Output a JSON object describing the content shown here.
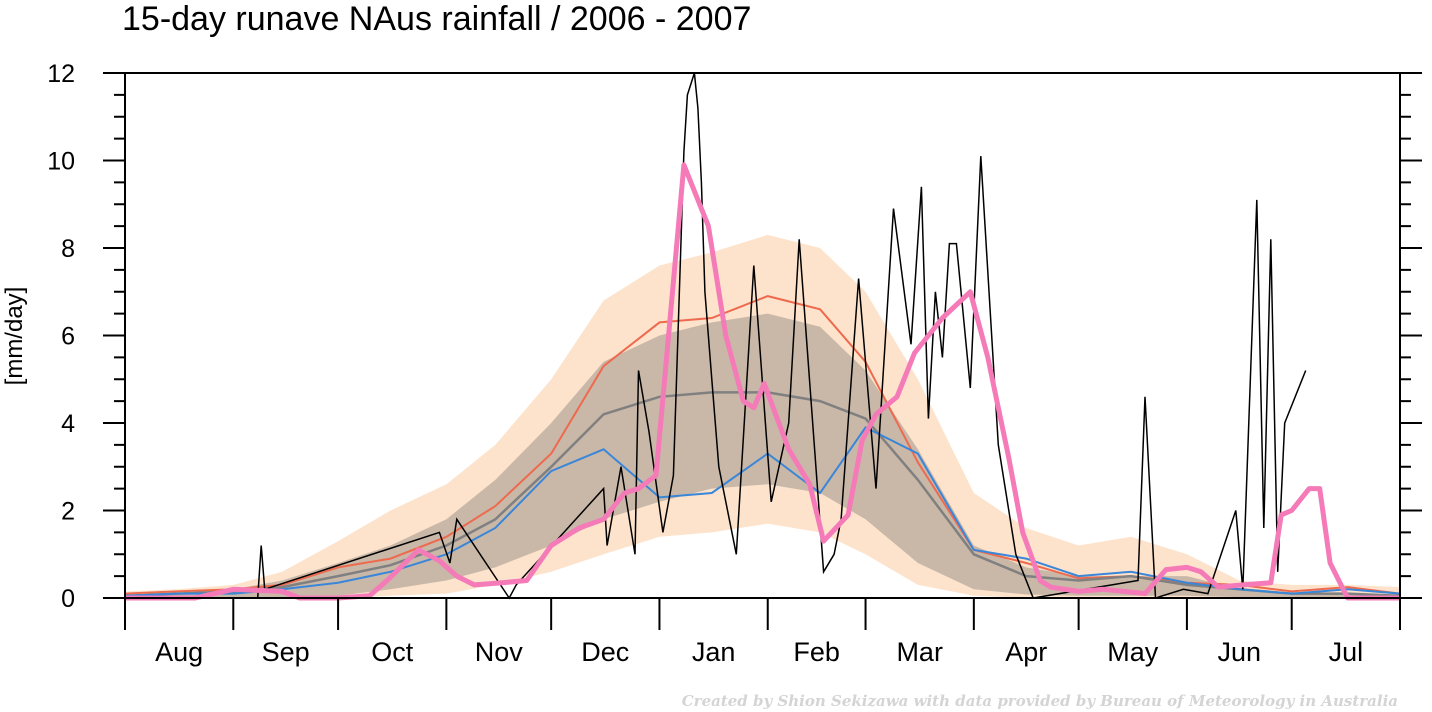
{
  "title": "15-day runave NAus rainfall  /  2006 - 2007",
  "credit": "Created by Shion Sekizawa with data provided by Bureau of Meteorology in Australia",
  "colors": {
    "outer_band": "#fde3cc",
    "inner_band": "#c9b8a8",
    "mean": "#ee6a4e",
    "median": "#808080",
    "blue": "#3a86d8",
    "daily": "#000000",
    "runave": "#f57ab8"
  },
  "chart_data": {
    "type": "line",
    "ylabel": "[mm/day]",
    "xlabel": "",
    "ylim": [
      0,
      12
    ],
    "yticks": [
      0,
      2,
      4,
      6,
      8,
      10,
      12
    ],
    "xlim": [
      0,
      365
    ],
    "grid": false,
    "legend": "none",
    "months": [
      "Aug",
      "Sep",
      "Oct",
      "Nov",
      "Dec",
      "Jan",
      "Feb",
      "Mar",
      "Apr",
      "May",
      "Jun",
      "Jul"
    ],
    "month_lengths": [
      31,
      30,
      31,
      30,
      31,
      31,
      28,
      31,
      30,
      31,
      30,
      31
    ],
    "climatology": {
      "x": [
        0,
        15,
        31,
        45,
        61,
        76,
        92,
        106,
        122,
        137,
        153,
        168,
        184,
        199,
        212,
        227,
        243,
        258,
        273,
        288,
        304,
        319,
        334,
        350,
        365
      ],
      "outer_hi": [
        0.15,
        0.2,
        0.3,
        0.6,
        1.3,
        2.0,
        2.6,
        3.5,
        5.0,
        6.8,
        7.6,
        7.9,
        8.3,
        8.0,
        7.0,
        5.0,
        2.4,
        1.6,
        1.2,
        1.4,
        1.0,
        0.4,
        0.3,
        0.3,
        0.25
      ],
      "inner_hi": [
        0.05,
        0.1,
        0.2,
        0.4,
        0.8,
        1.2,
        1.8,
        2.7,
        4.0,
        5.4,
        6.0,
        6.3,
        6.5,
        6.2,
        5.2,
        3.4,
        1.2,
        0.7,
        0.5,
        0.5,
        0.5,
        0.2,
        0.12,
        0.1,
        0.08
      ],
      "inner_lo": [
        0.0,
        0.0,
        0.0,
        0.02,
        0.05,
        0.2,
        0.4,
        0.7,
        1.2,
        1.8,
        2.2,
        2.5,
        2.6,
        2.4,
        1.8,
        0.8,
        0.2,
        0.08,
        0.05,
        0.05,
        0.05,
        0.02,
        0.0,
        0.0,
        0.0
      ],
      "outer_lo": [
        0.0,
        0.0,
        0.0,
        0.0,
        0.0,
        0.05,
        0.1,
        0.3,
        0.6,
        1.0,
        1.4,
        1.5,
        1.7,
        1.5,
        1.0,
        0.3,
        0.05,
        0.0,
        0.0,
        0.0,
        0.0,
        0.0,
        0.0,
        0.0,
        0.0
      ],
      "mean": [
        0.1,
        0.15,
        0.2,
        0.3,
        0.7,
        0.9,
        1.4,
        2.1,
        3.3,
        5.3,
        6.3,
        6.4,
        6.9,
        6.6,
        5.4,
        3.1,
        1.1,
        0.8,
        0.45,
        0.5,
        0.35,
        0.3,
        0.15,
        0.25,
        0.1
      ],
      "median": [
        0.05,
        0.1,
        0.15,
        0.25,
        0.5,
        0.75,
        1.2,
        1.8,
        3.0,
        4.2,
        4.6,
        4.7,
        4.7,
        4.5,
        4.1,
        2.7,
        1.0,
        0.5,
        0.4,
        0.5,
        0.3,
        0.2,
        0.1,
        0.1,
        0.05
      ],
      "blue": [
        0.05,
        0.1,
        0.1,
        0.2,
        0.35,
        0.6,
        1.0,
        1.6,
        2.9,
        3.4,
        2.3,
        2.4,
        3.3,
        2.4,
        3.9,
        3.3,
        1.1,
        0.9,
        0.5,
        0.6,
        0.35,
        0.2,
        0.1,
        0.2,
        0.1
      ]
    },
    "observed_15day_runave": {
      "x": [
        0,
        20,
        31,
        45,
        50,
        61,
        70,
        75,
        84,
        90,
        95,
        100,
        108,
        115,
        122,
        130,
        137,
        143,
        147,
        152,
        160,
        167,
        172,
        177,
        180,
        183,
        190,
        196,
        200,
        207,
        211,
        215,
        221,
        226,
        234,
        242,
        247,
        253,
        257,
        262,
        265,
        273,
        280,
        286,
        292,
        298,
        304,
        308,
        313,
        320,
        328,
        331,
        334,
        339,
        342,
        345,
        350,
        365
      ],
      "y": [
        0,
        0,
        0.2,
        0.15,
        0,
        0,
        0.05,
        0.4,
        1.1,
        0.85,
        0.5,
        0.3,
        0.35,
        0.4,
        1.2,
        1.6,
        1.8,
        2.4,
        2.5,
        2.8,
        9.9,
        8.5,
        6.0,
        4.5,
        4.35,
        4.9,
        3.4,
        2.6,
        1.3,
        1.9,
        3.6,
        4.2,
        4.6,
        5.6,
        6.4,
        7.0,
        5.5,
        3.2,
        1.5,
        0.4,
        0.25,
        0.15,
        0.2,
        0.15,
        0.1,
        0.65,
        0.7,
        0.6,
        0.25,
        0.3,
        0.35,
        1.9,
        2.0,
        2.5,
        2.5,
        0.8,
        0,
        0
      ]
    },
    "observed_daily_peaks": {
      "x": [
        38,
        39,
        40,
        90,
        93,
        95,
        110,
        112,
        137,
        138,
        142,
        146,
        147,
        150,
        154,
        157,
        160,
        161,
        163,
        164,
        165,
        166,
        168,
        170,
        175,
        180,
        185,
        190,
        193,
        200,
        203,
        205,
        210,
        215,
        220,
        225,
        228,
        230,
        232,
        234,
        236,
        238,
        242,
        245,
        250,
        255,
        260,
        290,
        292,
        295,
        303,
        310,
        318,
        320,
        324,
        326,
        328,
        330,
        332,
        338
      ],
      "y": [
        0,
        1.2,
        0.2,
        1.5,
        0.8,
        1.8,
        0,
        0.3,
        2.5,
        1.2,
        3.0,
        1.0,
        5.2,
        3.8,
        1.5,
        2.8,
        10.2,
        11.5,
        12.0,
        11.2,
        9.5,
        7.0,
        5.0,
        3.0,
        1.0,
        7.6,
        2.2,
        4.0,
        8.2,
        0.6,
        1.0,
        1.8,
        7.3,
        2.5,
        8.9,
        5.8,
        9.4,
        4.1,
        7.0,
        5.5,
        8.1,
        8.1,
        4.8,
        10.1,
        3.5,
        1.0,
        0.0,
        0.4,
        4.6,
        0.0,
        0.2,
        0.1,
        2.0,
        0.2,
        9.1,
        1.6,
        8.2,
        0.6,
        4.0,
        5.2
      ]
    }
  }
}
